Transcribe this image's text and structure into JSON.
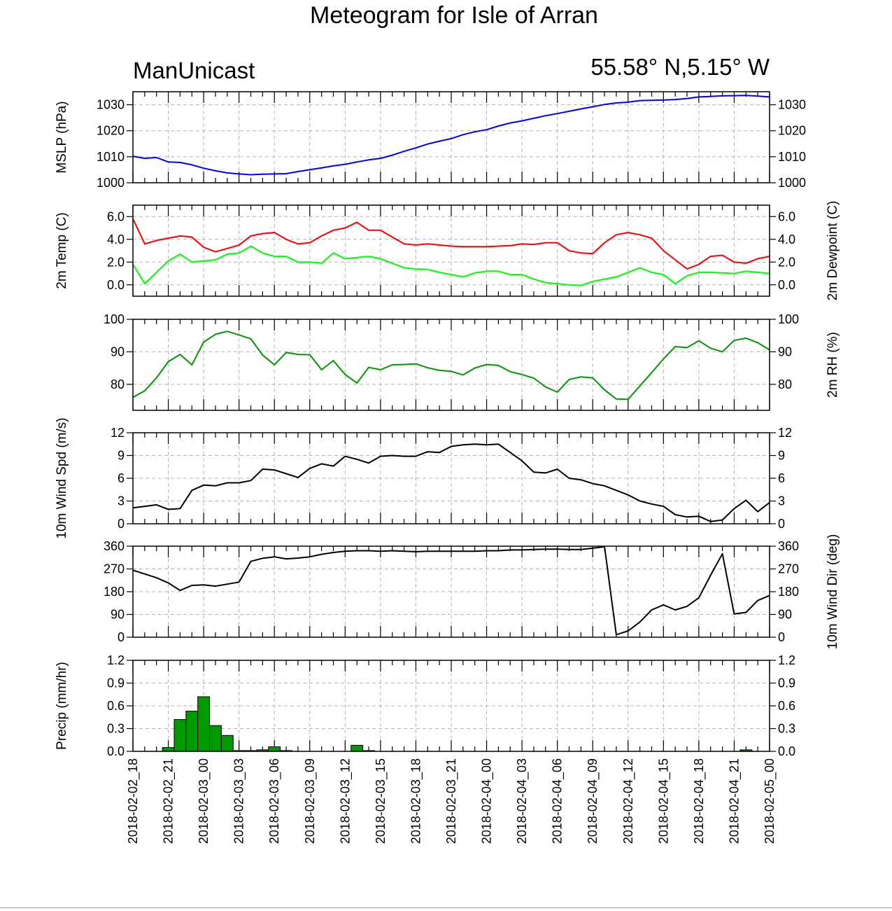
{
  "title": "Meteogram for Isle of Arran",
  "model": "ManUnicast",
  "location": "55.58° N,5.15° W",
  "colors": {
    "mslp": "#0000ff",
    "temp": "#ff0000",
    "dewpoint": "#00ff00",
    "rh": "#009900",
    "wind": "#000000",
    "precip": "#009900"
  },
  "chart_data": {
    "type": "line",
    "x_hours": [
      0,
      1,
      2,
      3,
      4,
      5,
      6,
      7,
      8,
      9,
      10,
      11,
      12,
      13,
      14,
      15,
      16,
      17,
      18,
      19,
      20,
      21,
      22,
      23,
      24,
      25,
      26,
      27,
      28,
      29,
      30,
      31,
      32,
      33,
      34,
      35,
      36,
      37,
      38,
      39,
      40,
      41,
      42,
      43,
      44,
      45,
      46,
      47,
      48,
      49,
      50,
      51,
      52,
      53,
      54
    ],
    "x_tick_hours": [
      0,
      3,
      6,
      9,
      12,
      15,
      18,
      21,
      24,
      27,
      30,
      33,
      36,
      39,
      42,
      45,
      48,
      51,
      54
    ],
    "x_tick_labels": [
      "2018-02-02_18",
      "2018-02-02_21",
      "2018-02-03_00",
      "2018-02-03_03",
      "2018-02-03_06",
      "2018-02-03_09",
      "2018-02-03_12",
      "2018-02-03_15",
      "2018-02-03_18",
      "2018-02-03_21",
      "2018-02-04_00",
      "2018-02-04_03",
      "2018-02-04_06",
      "2018-02-04_09",
      "2018-02-04_12",
      "2018-02-04_15",
      "2018-02-04_18",
      "2018-02-04_21",
      "2018-02-05_00"
    ],
    "panels": [
      {
        "id": "mslp",
        "ylabel_left": "MSLP (hPa)",
        "ylabel_right": "",
        "ylim": [
          1000,
          1035
        ],
        "yticks": [
          1000,
          1010,
          1020,
          1030
        ],
        "ytick_labels": [
          "1000",
          "1010",
          "1020",
          "1030"
        ],
        "series": [
          {
            "color_key": "mslp",
            "values": [
              1010.2,
              1009.4,
              1009.7,
              1008.0,
              1007.8,
              1006.9,
              1005.6,
              1004.6,
              1003.8,
              1003.4,
              1003.1,
              1003.3,
              1003.4,
              1003.5,
              1004.3,
              1005.0,
              1005.7,
              1006.5,
              1007.1,
              1008.0,
              1008.8,
              1009.4,
              1010.6,
              1012.1,
              1013.4,
              1014.9,
              1016.0,
              1017.0,
              1018.5,
              1019.6,
              1020.4,
              1021.8,
              1023.0,
              1023.8,
              1024.8,
              1025.8,
              1026.6,
              1027.5,
              1028.4,
              1029.2,
              1030.1,
              1030.7,
              1031.0,
              1031.6,
              1031.7,
              1031.8,
              1032.0,
              1032.4,
              1033.0,
              1033.2,
              1033.4,
              1033.5,
              1033.6,
              1033.3,
              1033.0
            ]
          }
        ]
      },
      {
        "id": "temp",
        "ylabel_left": "2m Temp (C)",
        "ylabel_right": "2m Dewpoint (C)",
        "ylim": [
          -1.0,
          7.0
        ],
        "yticks": [
          0,
          2,
          4,
          6
        ],
        "ytick_labels": [
          "0.0",
          "2.0",
          "4.0",
          "6.0"
        ],
        "series": [
          {
            "color_key": "temp",
            "values": [
              5.8,
              3.6,
              3.9,
              4.1,
              4.3,
              4.2,
              3.3,
              2.9,
              3.2,
              3.5,
              4.3,
              4.5,
              4.6,
              4.0,
              3.6,
              3.7,
              4.3,
              4.8,
              5.0,
              5.5,
              4.8,
              4.8,
              4.2,
              3.6,
              3.5,
              3.6,
              3.5,
              3.4,
              3.35,
              3.35,
              3.35,
              3.4,
              3.45,
              3.6,
              3.55,
              3.7,
              3.7,
              3.0,
              2.8,
              2.75,
              3.7,
              4.4,
              4.6,
              4.4,
              4.1,
              3.0,
              2.2,
              1.4,
              1.8,
              2.5,
              2.6,
              2.0,
              1.9,
              2.3,
              2.5
            ]
          },
          {
            "color_key": "dewpoint",
            "values": [
              1.8,
              0.1,
              1.1,
              2.1,
              2.7,
              2.0,
              2.1,
              2.2,
              2.7,
              2.8,
              3.4,
              2.8,
              2.5,
              2.5,
              2.0,
              2.0,
              1.9,
              2.8,
              2.3,
              2.4,
              2.5,
              2.3,
              1.9,
              1.5,
              1.4,
              1.35,
              1.1,
              0.9,
              0.7,
              1.05,
              1.2,
              1.2,
              0.9,
              0.9,
              0.5,
              0.2,
              0.1,
              0.0,
              -0.05,
              0.3,
              0.5,
              0.7,
              1.1,
              1.5,
              1.1,
              0.9,
              0.1,
              0.8,
              1.1,
              1.1,
              1.05,
              1.0,
              1.2,
              1.1,
              1.0
            ]
          }
        ]
      },
      {
        "id": "rh",
        "ylabel_left": "",
        "ylabel_right": "2m RH (%)",
        "ylim": [
          72,
          100
        ],
        "yticks": [
          80,
          90,
          100
        ],
        "ytick_labels": [
          "80",
          "90",
          "100"
        ],
        "series": [
          {
            "color_key": "rh",
            "values": [
              76.0,
              78.0,
              82.0,
              87.0,
              89.2,
              86.0,
              93.0,
              95.4,
              96.3,
              95.2,
              94.0,
              89.0,
              86.0,
              89.8,
              89.2,
              89.1,
              84.5,
              87.3,
              83.0,
              80.4,
              85.2,
              84.5,
              86.0,
              86.1,
              86.3,
              85.1,
              84.3,
              84.0,
              82.9,
              85.0,
              86.1,
              85.8,
              83.9,
              83.0,
              81.9,
              79.2,
              77.6,
              81.5,
              82.3,
              82.0,
              78.3,
              75.5,
              75.4,
              79.5,
              83.6,
              87.8,
              91.6,
              91.3,
              93.4,
              91.1,
              90.0,
              93.5,
              94.2,
              92.8,
              90.6
            ]
          }
        ]
      },
      {
        "id": "wspd",
        "ylabel_left": "10m Wind Spd (m/s)",
        "ylabel_right": "",
        "ylim": [
          0,
          12
        ],
        "yticks": [
          0,
          3,
          6,
          9,
          12
        ],
        "ytick_labels": [
          "0",
          "3",
          "6",
          "9",
          "12"
        ],
        "series": [
          {
            "color_key": "wind",
            "values": [
              2.1,
              2.3,
              2.5,
              1.9,
              2.0,
              4.4,
              5.1,
              5.0,
              5.4,
              5.4,
              5.7,
              7.2,
              7.1,
              6.6,
              6.1,
              7.3,
              7.9,
              7.6,
              8.9,
              8.5,
              8.0,
              8.9,
              9.0,
              8.9,
              8.9,
              9.5,
              9.4,
              10.2,
              10.4,
              10.5,
              10.4,
              10.5,
              9.4,
              8.3,
              6.8,
              6.7,
              7.2,
              6.0,
              5.8,
              5.3,
              5.0,
              4.4,
              3.8,
              3.0,
              2.6,
              2.3,
              1.2,
              0.9,
              1.0,
              0.3,
              0.5,
              2.0,
              3.1,
              1.6,
              2.8
            ]
          }
        ]
      },
      {
        "id": "wdir",
        "ylabel_left": "",
        "ylabel_right": "10m Wind Dir (deg)",
        "ylim": [
          0,
          360
        ],
        "yticks": [
          0,
          90,
          180,
          270,
          360
        ],
        "ytick_labels": [
          "0",
          "90",
          "180",
          "270",
          "360"
        ],
        "series": [
          {
            "color_key": "wind",
            "values": [
              265,
              250,
              235,
              215,
              185,
              205,
              207,
              202,
              210,
              218,
              300,
              312,
              318,
              310,
              313,
              318,
              328,
              335,
              340,
              342,
              342,
              340,
              342,
              340,
              338,
              340,
              340,
              340,
              340,
              340,
              342,
              342,
              345,
              345,
              347,
              348,
              348,
              347,
              347,
              352,
              358,
              10,
              25,
              60,
              108,
              128,
              108,
              122,
              156,
              245,
              330,
              92,
              98,
              145,
              165
            ]
          }
        ]
      },
      {
        "id": "precip",
        "type": "bar",
        "ylabel_left": "Precip (mm/hr)",
        "ylabel_right": "",
        "ylim": [
          0,
          1.2
        ],
        "yticks": [
          0,
          0.3,
          0.6,
          0.9,
          1.2
        ],
        "ytick_labels": [
          "0.0",
          "0.3",
          "0.6",
          "0.9",
          "1.2"
        ],
        "series": [
          {
            "color_key": "precip",
            "values": [
              0,
              0,
              0,
              0.05,
              0.42,
              0.53,
              0.72,
              0.34,
              0.21,
              0.01,
              0.01,
              0.02,
              0.06,
              0.01,
              0,
              0,
              0,
              0,
              0,
              0.08,
              0.01,
              0,
              0,
              0,
              0,
              0,
              0,
              0,
              0,
              0,
              0,
              0,
              0,
              0,
              0,
              0,
              0,
              0,
              0,
              0,
              0,
              0,
              0,
              0,
              0,
              0,
              0,
              0,
              0,
              0,
              0,
              0,
              0.02,
              0,
              0
            ]
          }
        ]
      }
    ]
  }
}
